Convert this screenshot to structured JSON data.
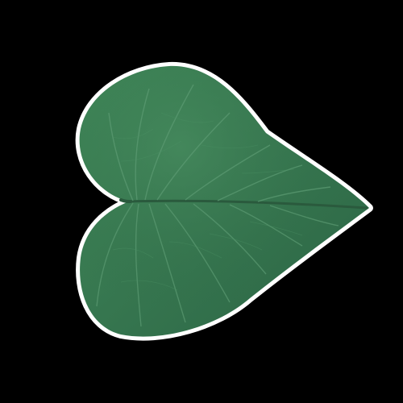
{
  "image": {
    "subject": "leaf",
    "background_color": "#000000",
    "colors": {
      "halo": "#f2f2f2",
      "leaf_dark": "#2f6a45",
      "leaf_mid": "#3c7e55",
      "leaf_light": "#4c9063",
      "vein": "#5b9a72",
      "midrib": "#2a5a3d"
    }
  }
}
